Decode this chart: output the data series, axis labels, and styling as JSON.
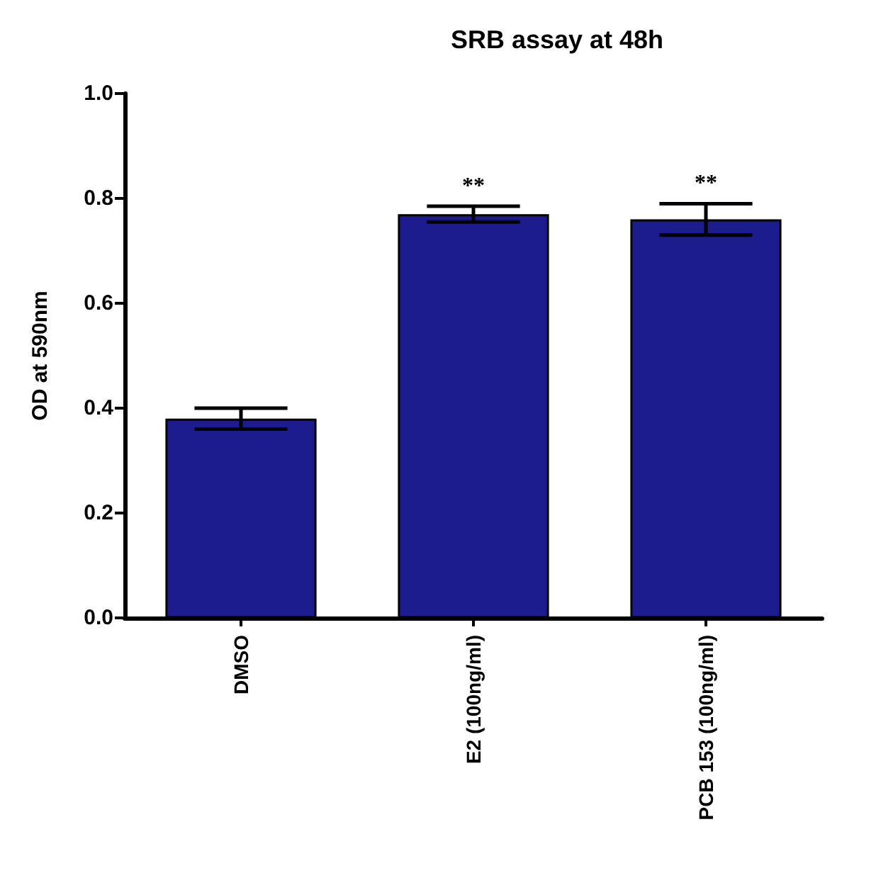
{
  "chart_data": {
    "type": "bar",
    "title": "SRB assay at 48h",
    "ylabel": "OD at 590nm",
    "categories": [
      "DMSO",
      "E2 (100ng/ml)",
      "PCB 153 (100ng/ml)"
    ],
    "values": [
      0.38,
      0.77,
      0.76
    ],
    "errors": [
      0.02,
      0.015,
      0.03
    ],
    "color": "#1c1c8e",
    "ylim": [
      0,
      1.0
    ],
    "yticks": [
      {
        "value": 0,
        "label": "0.0"
      },
      {
        "value": 0.2,
        "label": "0.2"
      },
      {
        "value": 0.4,
        "label": "0.4"
      },
      {
        "value": 0.6,
        "label": "0.6"
      },
      {
        "value": 0.8,
        "label": "0.8"
      },
      {
        "value": 1.0,
        "label": "1.0"
      }
    ],
    "grid": false,
    "annotations": [
      "**",
      "**"
    ]
  }
}
